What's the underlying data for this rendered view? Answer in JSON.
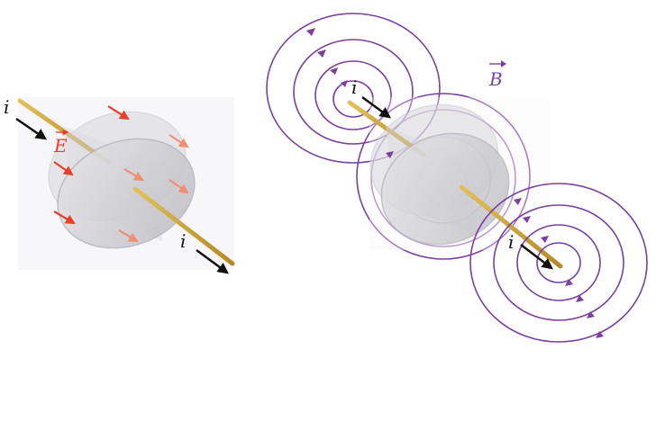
{
  "left_figure": {
    "current_label_top": "i",
    "current_label_bottom": "i",
    "field_label": "E",
    "field_color": "#e8402a"
  },
  "right_figure": {
    "current_label_top": "i",
    "current_label_bottom": "i",
    "field_label": "B",
    "field_color": "#7b3fa0"
  },
  "colors": {
    "wire": "#c9a43a",
    "arrow": "#111111",
    "plate": "#cfcfd4"
  }
}
